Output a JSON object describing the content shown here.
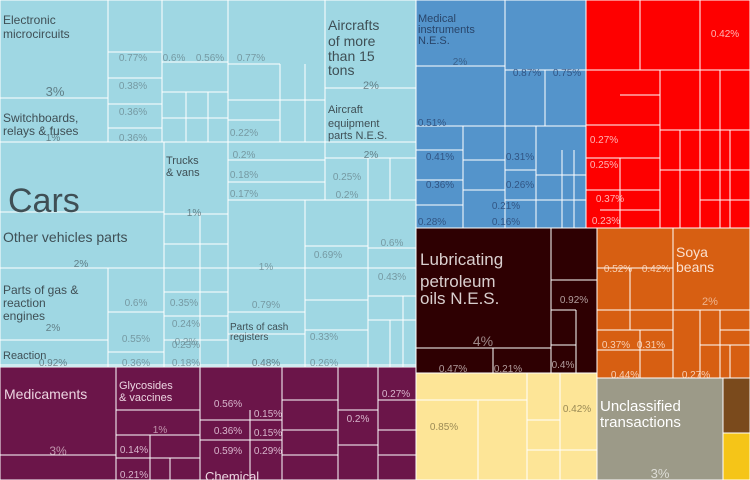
{
  "chart_data": {
    "type": "treemap",
    "colors": {
      "machinery": "#9fd7e3",
      "instruments": "#5494cb",
      "electronics": "#fe0000",
      "chemicals": "#6b1549",
      "mineral": "#2e0002",
      "food": "#fde597",
      "vegetable": "#d75f12",
      "unclassified": "#9c9a88",
      "animal": "#7a4a1c",
      "misc": "#f5c518",
      "border": "#ffffff"
    },
    "labeled_cells": [
      {
        "name": "Electronic microcircuits",
        "value": "3%"
      },
      {
        "name": "Switchboards, relays & fuses",
        "value": "1%"
      },
      {
        "name": "Cars",
        "value": ""
      },
      {
        "name": "Trucks & vans",
        "value": "1%"
      },
      {
        "name": "Other vehicles parts",
        "value": "2%"
      },
      {
        "name": "Parts of gas & reaction engines",
        "value": "2%"
      },
      {
        "name": "Reaction",
        "value": "0.92%"
      },
      {
        "name": "Parts of cash registers",
        "value": "0.48%"
      },
      {
        "name": "Aircrafts of more than 15 tons",
        "value": "2%"
      },
      {
        "name": "Aircraft equipment parts N.E.S.",
        "value": "2%"
      },
      {
        "name": "Medical instruments N.E.S.",
        "value": "2%"
      },
      {
        "name": "Lubricating petroleum oils N.E.S.",
        "value": "4%"
      },
      {
        "name": "Soya beans",
        "value": "2%"
      },
      {
        "name": "Medicaments",
        "value": "3%"
      },
      {
        "name": "Glycosides & vaccines",
        "value": "1%"
      },
      {
        "name": "Chemical",
        "value": ""
      },
      {
        "name": "Unclassified transactions",
        "value": "3%"
      }
    ],
    "value_labels": [
      "0.77%",
      "0.6%",
      "0.56%",
      "0.77%",
      "0.38%",
      "0.36%",
      "0.36%",
      "0.22%",
      "0.2%",
      "0.18%",
      "0.17%",
      "0.25%",
      "0.2%",
      "1%",
      "0.69%",
      "0.6%",
      "0.43%",
      "0.79%",
      "0.6%",
      "0.35%",
      "0.55%",
      "0.24%",
      "0.2%",
      "0.23%",
      "0.36%",
      "0.18%",
      "0.33%",
      "0.26%",
      "0.87%",
      "0.75%",
      "0.51%",
      "0.41%",
      "0.31%",
      "0.36%",
      "0.26%",
      "0.21%",
      "0.28%",
      "0.16%",
      "0.42%",
      "0.27%",
      "0.25%",
      "0.37%",
      "0.23%",
      "0.92%",
      "0.47%",
      "0.21%",
      "0.4%",
      "0.52%",
      "0.42%",
      "0.37%",
      "0.31%",
      "0.44%",
      "0.27%",
      "0.56%",
      "0.15%",
      "0.36%",
      "0.15%",
      "0.59%",
      "0.29%",
      "0.2%",
      "0.27%",
      "0.14%",
      "0.21%",
      "0.85%",
      "0.42%"
    ]
  }
}
